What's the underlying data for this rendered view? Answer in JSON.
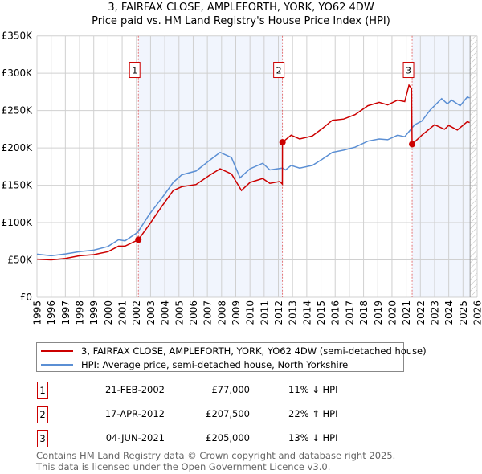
{
  "title_line1": "3, FAIRFAX CLOSE, AMPLEFORTH, YORK, YO62 4DW",
  "title_line2": "Price paid vs. HM Land Registry's House Price Index (HPI)",
  "chart_data": {
    "type": "line",
    "title": "3, FAIRFAX CLOSE, AMPLEFORTH, YORK, YO62 4DW - Price paid vs. HM Land Registry's House Price Index (HPI)",
    "xlim": [
      1995,
      2026
    ],
    "ylim": [
      0,
      350000
    ],
    "x_ticks": [
      "1995",
      "1996",
      "1997",
      "1998",
      "1999",
      "2000",
      "2001",
      "2002",
      "2003",
      "2004",
      "2005",
      "2006",
      "2007",
      "2008",
      "2009",
      "2010",
      "2011",
      "2012",
      "2013",
      "2014",
      "2015",
      "2016",
      "2017",
      "2018",
      "2019",
      "2020",
      "2021",
      "2022",
      "2023",
      "2024",
      "2025",
      "2026"
    ],
    "y_ticks": [
      {
        "value": 0,
        "label": "£0"
      },
      {
        "value": 50000,
        "label": "£50K"
      },
      {
        "value": 100000,
        "label": "£100K"
      },
      {
        "value": 150000,
        "label": "£150K"
      },
      {
        "value": 200000,
        "label": "£200K"
      },
      {
        "value": 250000,
        "label": "£250K"
      },
      {
        "value": 300000,
        "label": "£300K"
      },
      {
        "value": 350000,
        "label": "£350K"
      }
    ],
    "grid": true,
    "shaded_ranges": [
      [
        2002.14,
        2012.29
      ],
      [
        2021.42,
        2025.5
      ]
    ],
    "forecast_hatch_from": 2025.5,
    "series": [
      {
        "name": "3, FAIRFAX CLOSE, AMPLEFORTH, YORK, YO62 4DW (semi-detached house)",
        "color": "#cc0000",
        "x": [
          1995,
          1996,
          1997,
          1998,
          1999,
          2000,
          2000.75,
          2001.2,
          2002.14,
          2002.9,
          2003.8,
          2004.6,
          2005.2,
          2006.2,
          2007.2,
          2007.9,
          2008.7,
          2009.4,
          2010,
          2010.9,
          2011.4,
          2012.1,
          2012.28,
          2012.29,
          2012.9,
          2013.5,
          2014.4,
          2015.1,
          2015.8,
          2016.6,
          2017.4,
          2018.3,
          2019.1,
          2019.7,
          2020.4,
          2020.9,
          2021.2,
          2021.38,
          2021.42,
          2022.1,
          2023.0,
          2023.7,
          2024.0,
          2024.6,
          2025.3,
          2025.47
        ],
        "y": [
          51000,
          50000,
          52000,
          55500,
          57000,
          61000,
          68400,
          68400,
          77000,
          97000,
          122000,
          143000,
          148000,
          151000,
          164000,
          172000,
          165000,
          143000,
          153700,
          159000,
          152600,
          155000,
          151500,
          207500,
          217000,
          212000,
          216000,
          226000,
          237000,
          238600,
          244600,
          256500,
          261000,
          257600,
          264000,
          262000,
          284000,
          279700,
          205000,
          217000,
          231000,
          225000,
          230000,
          224000,
          235000,
          234000
        ]
      },
      {
        "name": "HPI: Average price, semi-detached house, North Yorkshire",
        "color": "#5b8fd4",
        "x": [
          1995,
          1996,
          1997,
          1998,
          1999,
          2000,
          2000.75,
          2001.2,
          2002.1,
          2002.9,
          2003.8,
          2004.6,
          2005.2,
          2006.2,
          2007.2,
          2007.9,
          2008.7,
          2009.3,
          2010,
          2010.9,
          2011.4,
          2012.3,
          2012.5,
          2012.9,
          2013.5,
          2014.4,
          2015.1,
          2015.8,
          2016.6,
          2017.4,
          2018.3,
          2019.1,
          2019.7,
          2020.4,
          2020.9,
          2021.6,
          2022.1,
          2022.7,
          2023.5,
          2023.9,
          2024.2,
          2024.8,
          2025.3,
          2025.47
        ],
        "y": [
          57700,
          55500,
          58000,
          61000,
          63000,
          68000,
          77000,
          75500,
          87000,
          110700,
          133000,
          154000,
          164000,
          169000,
          184000,
          194000,
          187000,
          160000,
          172000,
          179500,
          170500,
          173000,
          170500,
          176600,
          173000,
          176600,
          185000,
          194000,
          197000,
          201000,
          209000,
          212000,
          211000,
          217000,
          215000,
          231000,
          236000,
          251000,
          266000,
          259000,
          264000,
          256500,
          268000,
          267000
        ]
      }
    ],
    "sales": [
      {
        "id": "1",
        "x": 2002.14,
        "y": 77000
      },
      {
        "id": "2",
        "x": 2012.29,
        "y": 207500
      },
      {
        "id": "3",
        "x": 2021.42,
        "y": 205000
      }
    ]
  },
  "legend": {
    "property": "3, FAIRFAX CLOSE, AMPLEFORTH, YORK, YO62 4DW (semi-detached house)",
    "hpi": "HPI: Average price, semi-detached house, North Yorkshire"
  },
  "transactions": [
    {
      "id": "1",
      "date": "21-FEB-2002",
      "price": "£77,000",
      "hpi": "11% ↓ HPI"
    },
    {
      "id": "2",
      "date": "17-APR-2012",
      "price": "£207,500",
      "hpi": "22% ↑ HPI"
    },
    {
      "id": "3",
      "date": "04-JUN-2021",
      "price": "£205,000",
      "hpi": "13% ↓ HPI"
    }
  ],
  "footer_line1": "Contains HM Land Registry data © Crown copyright and database right 2025.",
  "footer_line2": "This data is licensed under the Open Government Licence v3.0."
}
